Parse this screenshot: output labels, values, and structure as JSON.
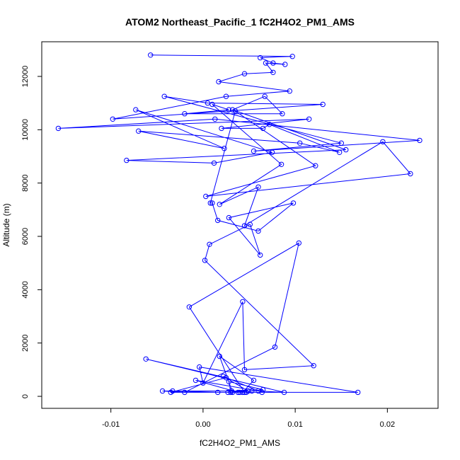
{
  "chart_data": {
    "type": "line",
    "title": "ATOM2 Northeast_Pacific_1 fC2H4O2_PM1_AMS",
    "xlabel": "fC2H4O2_PM1_AMS",
    "ylabel": "Altitude (m)",
    "xlim": [
      -0.0175,
      0.0255
    ],
    "ylim": [
      -450,
      13300
    ],
    "x_ticks": [
      -0.01,
      0.0,
      0.01,
      0.02
    ],
    "x_tick_labels": [
      "-0.01",
      "0.00",
      "0.01",
      "0.02"
    ],
    "y_ticks": [
      0,
      2000,
      4000,
      6000,
      8000,
      10000,
      12000
    ],
    "y_tick_labels": [
      "0",
      "2000",
      "4000",
      "6000",
      "8000",
      "10000",
      "12000"
    ],
    "grid": false,
    "legend": "none",
    "color": "#0000ff",
    "series": [
      {
        "x": [
          -0.0057,
          0.0097,
          0.0062,
          0.0076,
          0.0089,
          0.0068,
          0.0076,
          0.0045,
          0.0017,
          0.0094,
          0.0025,
          -0.0098,
          0.013,
          0.0005,
          -0.0042,
          0.015,
          0.0055,
          0.0235,
          0.0013,
          -0.0157,
          0.0115,
          0.002,
          0.0065,
          0.0072,
          0.0148,
          0.0105,
          -0.007,
          0.0023,
          -0.0073,
          0.0075,
          0.0012,
          -0.0083,
          0.0155,
          0.0032,
          0.0067,
          0.0086,
          -0.002,
          0.0028,
          0.001,
          0.0085,
          0.0018,
          0.006,
          0.0045,
          0.0195,
          0.0225,
          0.0003,
          0.0122,
          0.0035,
          0.0008,
          0.001,
          0.0016,
          0.006,
          0.0098,
          0.0028,
          0.0062,
          0.0051,
          0.0007,
          0.0002,
          0.012,
          0.0045,
          0.0043,
          0.0,
          -0.0004,
          0.0168,
          -0.0035,
          0.0025,
          -0.0062,
          0.0088,
          0.006,
          -0.0008,
          0.0038,
          0.0047,
          0.0031,
          -0.0044,
          -0.002,
          0.0078,
          0.0104,
          -0.0015,
          0.0045,
          0.003,
          0.0028,
          0.0065,
          0.0053,
          0.0027,
          0.0032,
          0.0018,
          0.0055,
          0.0043,
          0.0064,
          0.0022,
          0.0049,
          -0.0033,
          0.0016,
          0.004
        ],
        "y": [
          12800,
          12750,
          12700,
          12500,
          12450,
          12500,
          12150,
          12100,
          11800,
          11450,
          11250,
          10400,
          10950,
          11000,
          11250,
          9500,
          9200,
          9600,
          10400,
          10050,
          10400,
          10050,
          10050,
          10200,
          9150,
          9500,
          9950,
          9300,
          10750,
          9150,
          8750,
          8850,
          9250,
          10750,
          11250,
          10600,
          10600,
          10750,
          10950,
          8700,
          7200,
          7850,
          6400,
          9550,
          8350,
          7500,
          8650,
          10700,
          7250,
          7250,
          6600,
          6200,
          7250,
          6700,
          5300,
          6450,
          5700,
          5100,
          1150,
          1000,
          3550,
          500,
          1100,
          150,
          150,
          700,
          1400,
          150,
          200,
          600,
          150,
          150,
          200,
          200,
          150,
          1850,
          5750,
          3350,
          150,
          150,
          550,
          250,
          200,
          150,
          150,
          1500,
          600,
          150,
          150,
          750,
          200,
          200,
          150,
          150
        ]
      }
    ]
  }
}
